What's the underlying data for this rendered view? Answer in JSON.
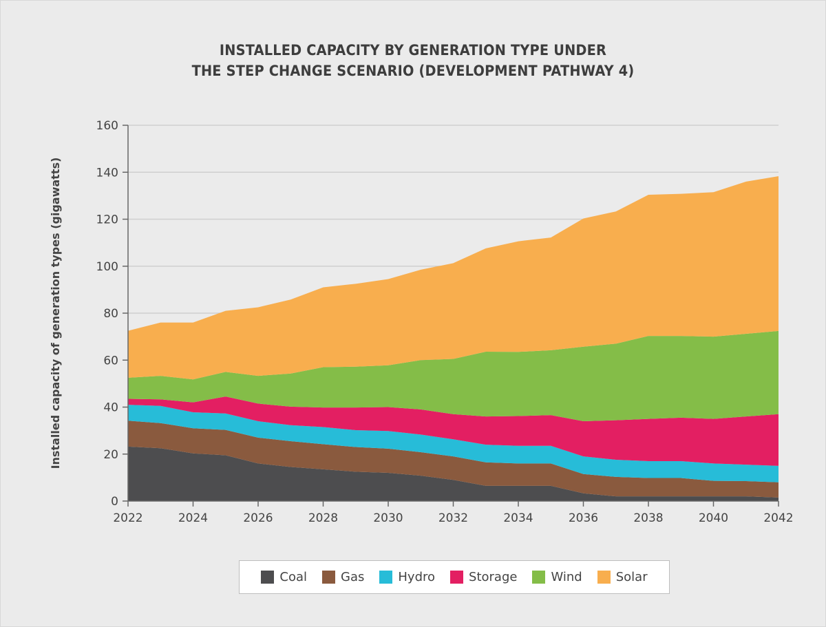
{
  "chart_data": {
    "type": "area",
    "stacked": true,
    "title_lines": [
      "INSTALLED CAPACITY BY GENERATION TYPE UNDER",
      "THE STEP CHANGE SCENARIO (DEVELOPMENT PATHWAY 4)"
    ],
    "xlabel": "",
    "ylabel": "Installed capacity of generation types (gigawatts)",
    "ylim": [
      0,
      160
    ],
    "yticks": [
      0,
      20,
      40,
      60,
      80,
      100,
      120,
      140,
      160
    ],
    "xlim": [
      2022,
      2042
    ],
    "xticks": [
      2022,
      2024,
      2026,
      2028,
      2030,
      2032,
      2034,
      2036,
      2038,
      2040,
      2042
    ],
    "grid": "horizontal",
    "legend_placement": "bottom",
    "x": [
      2022,
      2023,
      2024,
      2025,
      2026,
      2027,
      2028,
      2029,
      2030,
      2031,
      2032,
      2033,
      2034,
      2035,
      2036,
      2037,
      2038,
      2039,
      2040,
      2041,
      2042
    ],
    "series": [
      {
        "name": "Coal",
        "color": "#4d4d4f",
        "values": [
          23.2,
          22.5,
          20.3,
          19.5,
          16.0,
          14.5,
          13.5,
          12.5,
          12.0,
          10.8,
          9.0,
          6.5,
          6.5,
          6.5,
          3.3,
          2.0,
          2.0,
          2.0,
          2.0,
          2.0,
          1.5
        ]
      },
      {
        "name": "Gas",
        "color": "#8a5a3e",
        "values": [
          11.0,
          10.7,
          10.7,
          10.8,
          11.0,
          11.0,
          10.7,
          10.5,
          10.3,
          10.0,
          10.0,
          10.0,
          9.5,
          9.5,
          8.2,
          8.3,
          7.8,
          7.8,
          6.6,
          6.5,
          6.5
        ]
      },
      {
        "name": "Hydro",
        "color": "#27bcd8",
        "values": [
          6.8,
          7.3,
          6.8,
          7.0,
          7.0,
          6.8,
          7.3,
          7.2,
          7.5,
          7.5,
          7.3,
          7.5,
          7.5,
          7.5,
          7.5,
          7.3,
          7.2,
          7.2,
          7.4,
          7.0,
          7.0
        ]
      },
      {
        "name": "Storage",
        "color": "#e31f62",
        "values": [
          2.5,
          2.8,
          4.2,
          7.2,
          7.5,
          7.9,
          8.3,
          9.6,
          10.2,
          10.7,
          10.7,
          12.0,
          12.7,
          13.1,
          15.0,
          16.8,
          18.0,
          18.5,
          19.0,
          20.5,
          22.0
        ]
      },
      {
        "name": "Wind",
        "color": "#84bd48",
        "values": [
          9.0,
          10.0,
          9.8,
          10.5,
          11.8,
          14.1,
          17.2,
          17.4,
          17.8,
          21.0,
          23.5,
          27.6,
          27.3,
          27.6,
          31.7,
          32.6,
          35.3,
          34.8,
          35.0,
          35.2,
          35.4
        ]
      },
      {
        "name": "Solar",
        "color": "#f8ae4e",
        "values": [
          20.0,
          22.7,
          24.2,
          26.0,
          29.2,
          31.5,
          34.0,
          35.3,
          36.7,
          38.5,
          40.8,
          44.0,
          47.1,
          48.0,
          54.6,
          56.3,
          60.1,
          60.5,
          61.5,
          64.8,
          65.9
        ]
      }
    ]
  }
}
